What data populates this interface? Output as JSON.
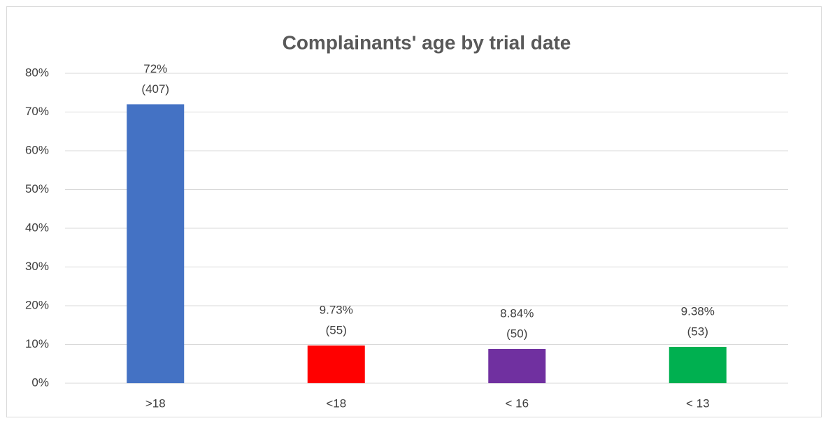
{
  "chart_data": {
    "type": "bar",
    "title": "Complainants' age by trial date",
    "categories": [
      ">18",
      "<18",
      "< 16",
      "< 13"
    ],
    "values": [
      72,
      9.73,
      8.84,
      9.38
    ],
    "value_labels": [
      "72%",
      "9.73%",
      "8.84%",
      "9.38%"
    ],
    "count_labels": [
      "(407)",
      "(55)",
      "(50)",
      "(53)"
    ],
    "colors": [
      "#4472c4",
      "#ff0000",
      "#7030a0",
      "#00b050"
    ],
    "ylim": [
      0,
      80
    ],
    "yticks": [
      {
        "value": 0,
        "label": "0%"
      },
      {
        "value": 10,
        "label": "10%"
      },
      {
        "value": 20,
        "label": "20%"
      },
      {
        "value": 30,
        "label": "30%"
      },
      {
        "value": 40,
        "label": "40%"
      },
      {
        "value": 50,
        "label": "50%"
      },
      {
        "value": 60,
        "label": "60%"
      },
      {
        "value": 70,
        "label": "70%"
      },
      {
        "value": 80,
        "label": "80%"
      }
    ],
    "grid": true
  }
}
